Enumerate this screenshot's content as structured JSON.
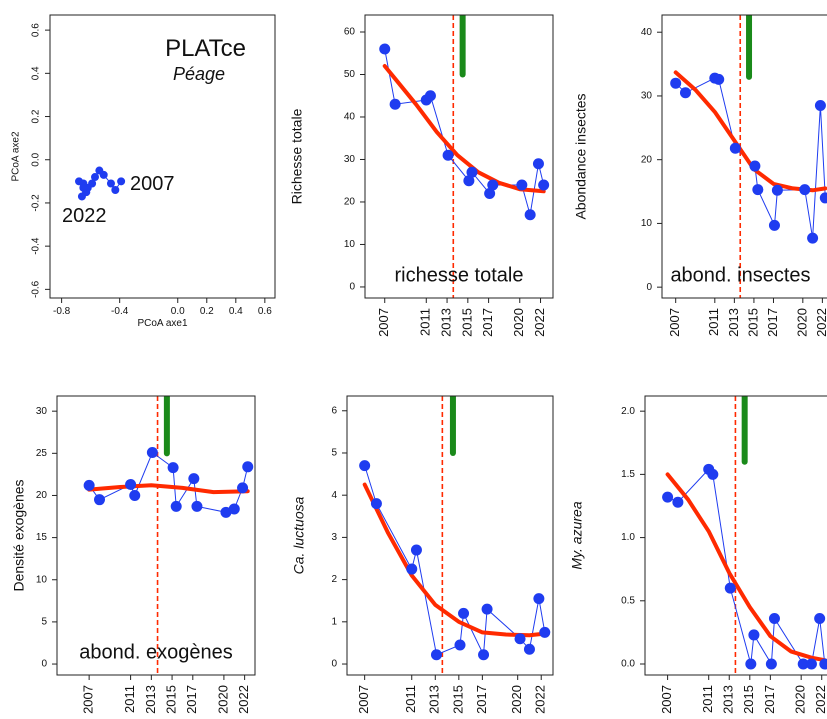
{
  "chart_data": [
    {
      "type": "scatter",
      "title": "PLATce",
      "subtitle": "Péage",
      "labels": [
        "2007",
        "2022"
      ],
      "xlabel": "PCoA axe1",
      "ylabel": "PCoA axe2",
      "color": "#1f3cf0",
      "x": [
        -0.39,
        -0.43,
        -0.46,
        -0.51,
        -0.54,
        -0.57,
        -0.59,
        -0.62,
        -0.65,
        -0.68,
        -0.63,
        -0.66,
        -0.65
      ],
      "values": [
        -0.1,
        -0.14,
        -0.11,
        -0.07,
        -0.05,
        -0.08,
        -0.11,
        -0.13,
        -0.11,
        -0.1,
        -0.15,
        -0.17,
        -0.13
      ],
      "xlim": [
        -0.88,
        0.67
      ],
      "ylim": [
        -0.64,
        0.67
      ],
      "xticks": [
        -0.8,
        -0.4,
        {
          "value": 0,
          "label": "0.0"
        },
        0.2,
        0.4,
        0.6
      ],
      "yticks": [
        -0.6,
        -0.4,
        -0.2,
        {
          "value": 0,
          "label": "0.0"
        },
        0.2,
        0.4,
        0.6
      ]
    },
    {
      "type": "line",
      "ylabel": "Richesse totale",
      "panel_label": "richesse totale",
      "color": "#1f3cf0",
      "x": [
        2007,
        2008,
        2011,
        2011.4,
        2013.1,
        2015.1,
        2015.4,
        2017.1,
        2017.4,
        2020.2,
        2021,
        2021.8,
        2022.3
      ],
      "values": [
        56,
        43,
        44,
        45,
        31,
        25,
        27,
        22,
        24,
        24,
        17,
        29,
        24
      ],
      "trend": {
        "x": [
          2007,
          2008,
          2010,
          2012,
          2014,
          2016,
          2018,
          2020,
          2022.3
        ],
        "values": [
          52,
          49,
          43,
          36.5,
          31,
          27,
          24.5,
          23,
          22.5
        ],
        "color": "#ff2a00"
      },
      "vline": 2013.6,
      "vline_color": "#ff2a00",
      "bar": {
        "x": 2014.5,
        "from": 50,
        "color": "#1a8a1a"
      },
      "xlim": [
        2005.1,
        2023.2
      ],
      "ylim": [
        -2.6,
        64
      ],
      "xticks": [
        2007,
        2011,
        2013,
        2015,
        2017,
        2020,
        2022
      ],
      "yticks": [
        0,
        10,
        20,
        30,
        40,
        50,
        60
      ]
    },
    {
      "type": "line",
      "ylabel": "Abondance insectes",
      "panel_label": "abond. insectes",
      "color": "#1f3cf0",
      "x": [
        2007,
        2008,
        2011,
        2011.4,
        2013.1,
        2015.1,
        2015.4,
        2017.1,
        2017.4,
        2020.2,
        2021,
        2021.8,
        2022.3
      ],
      "values": [
        32,
        30.5,
        32.8,
        32.6,
        21.8,
        19,
        15.3,
        9.7,
        15.2,
        15.3,
        7.7,
        28.5,
        14
      ],
      "trend": {
        "x": [
          2007,
          2009,
          2011,
          2013,
          2015,
          2017,
          2019,
          2021,
          2022.3
        ],
        "values": [
          33.7,
          31,
          27.5,
          23,
          18.5,
          16.2,
          15.5,
          15.2,
          15.5
        ],
        "color": "#ff2a00"
      },
      "vline": 2013.6,
      "vline_color": "#ff2a00",
      "bar": {
        "x": 2014.5,
        "from": 33,
        "color": "#1a8a1a"
      },
      "xlim": [
        2005.6,
        2023.7
      ],
      "ylim": [
        -1.7,
        42.7
      ],
      "xticks": [
        2007,
        2011,
        2013,
        2015,
        2017,
        2020,
        2022
      ],
      "yticks": [
        0,
        10,
        20,
        30,
        40
      ]
    },
    {
      "type": "line",
      "ylabel": "Densité exogènes",
      "panel_label": "abond. exogènes",
      "color": "#1f3cf0",
      "x": [
        2007,
        2008,
        2011,
        2011.4,
        2013.1,
        2015.1,
        2015.4,
        2017.1,
        2017.4,
        2020.2,
        2021,
        2021.8,
        2022.3
      ],
      "values": [
        21.2,
        19.5,
        21.3,
        20,
        25.1,
        23.3,
        18.7,
        22,
        18.7,
        18,
        18.4,
        20.9,
        23.4
      ],
      "trend": {
        "x": [
          2007,
          2010,
          2013,
          2016,
          2019,
          2022.3
        ],
        "values": [
          20.7,
          21,
          21.2,
          20.9,
          20.4,
          20.5
        ],
        "color": "#ff2a00"
      },
      "vline": 2013.6,
      "vline_color": "#ff2a00",
      "bar": {
        "x": 2014.5,
        "from": 25,
        "color": "#1a8a1a"
      },
      "xlim": [
        2003.9,
        2023
      ],
      "ylim": [
        -1.3,
        31.8
      ],
      "xticks": [
        2007,
        2011,
        2013,
        2015,
        2017,
        2020,
        2022
      ],
      "yticks": [
        0,
        5,
        10,
        15,
        20,
        25,
        30
      ]
    },
    {
      "type": "line",
      "ylabel": "Ca. luctuosa",
      "ylabel_style": "italic",
      "color": "#1f3cf0",
      "x": [
        2007,
        2008,
        2011,
        2011.4,
        2013.1,
        2015.1,
        2015.4,
        2017.1,
        2017.4,
        2020.2,
        2021,
        2021.8,
        2022.3
      ],
      "values": [
        4.7,
        3.8,
        2.25,
        2.7,
        0.22,
        0.45,
        1.2,
        0.22,
        1.3,
        0.6,
        0.35,
        1.55,
        0.75
      ],
      "trend": {
        "x": [
          2007,
          2009,
          2011,
          2013,
          2015,
          2017,
          2019,
          2021,
          2022.3
        ],
        "values": [
          4.25,
          3.1,
          2.1,
          1.4,
          1,
          0.75,
          0.7,
          0.68,
          0.72
        ],
        "color": "#ff2a00"
      },
      "vline": 2013.6,
      "vline_color": "#ff2a00",
      "bar": {
        "x": 2014.5,
        "from": 5,
        "color": "#1a8a1a"
      },
      "xlim": [
        2005.5,
        2023
      ],
      "ylim": [
        -0.26,
        6.35
      ],
      "xticks": [
        2007,
        2011,
        2013,
        2015,
        2017,
        2020,
        2022
      ],
      "yticks": [
        0,
        1,
        2,
        3,
        4,
        5,
        6
      ]
    },
    {
      "type": "line",
      "ylabel": "My. azurea",
      "ylabel_style": "italic",
      "color": "#1f3cf0",
      "x": [
        2007,
        2008,
        2011,
        2011.4,
        2013.1,
        2015.1,
        2015.4,
        2017.1,
        2017.4,
        2020.2,
        2021,
        2021.8,
        2022.3
      ],
      "values": [
        1.32,
        1.28,
        1.54,
        1.5,
        0.6,
        0,
        0.23,
        0,
        0.36,
        0,
        0,
        0.36,
        0
      ],
      "trend": {
        "x": [
          2007,
          2009,
          2011,
          2013,
          2015,
          2017,
          2019,
          2021,
          2022.3
        ],
        "values": [
          1.5,
          1.3,
          1.05,
          0.72,
          0.45,
          0.22,
          0.1,
          0.05,
          0.03
        ],
        "color": "#ff2a00"
      },
      "vline": 2013.6,
      "vline_color": "#ff2a00",
      "bar": {
        "x": 2014.5,
        "from": 1.6,
        "color": "#1a8a1a"
      },
      "xlim": [
        2004.8,
        2023
      ],
      "ylim": [
        -0.087,
        2.12
      ],
      "xticks": [
        2007,
        2011,
        2013,
        2015,
        2017,
        2020,
        2022
      ],
      "yticks": [
        {
          "value": 0,
          "label": "0.0"
        },
        0.5,
        {
          "value": 1,
          "label": "1.0"
        },
        1.5,
        {
          "value": 2,
          "label": "2.0"
        }
      ]
    }
  ]
}
